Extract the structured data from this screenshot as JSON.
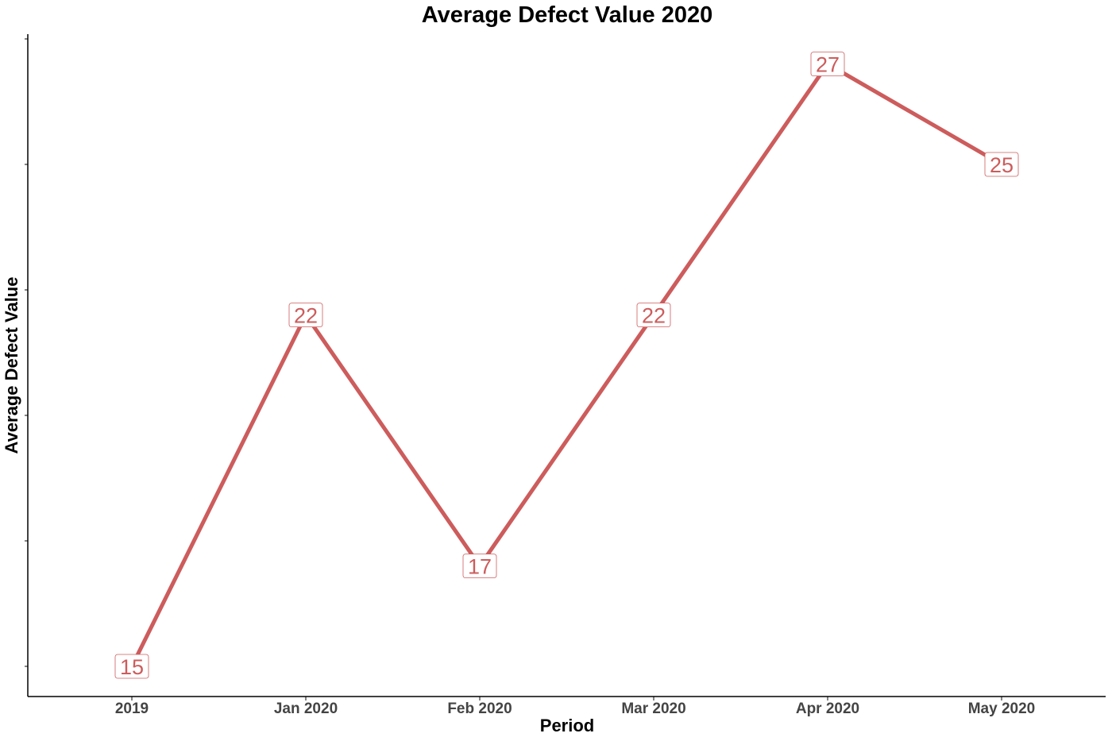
{
  "chart_data": {
    "type": "line",
    "title": "Average Defect Value 2020",
    "xlabel": "Period",
    "ylabel": "Average Defect Value",
    "categories": [
      "2019",
      "Jan 2020",
      "Feb 2020",
      "Mar 2020",
      "Apr 2020",
      "May 2020"
    ],
    "series": [
      {
        "values": [
          15,
          22,
          17,
          22,
          27,
          25
        ],
        "color": "#cd5c5c"
      }
    ],
    "data_labels": [
      "15",
      "22",
      "17",
      "22",
      "27",
      "25"
    ],
    "ylim": [
      14.4,
      27.6
    ],
    "y_ticks": [
      15,
      17.5,
      20,
      22.5,
      25,
      27.5
    ],
    "y_tick_labels_shown": false,
    "grid": false,
    "legend": "none"
  }
}
